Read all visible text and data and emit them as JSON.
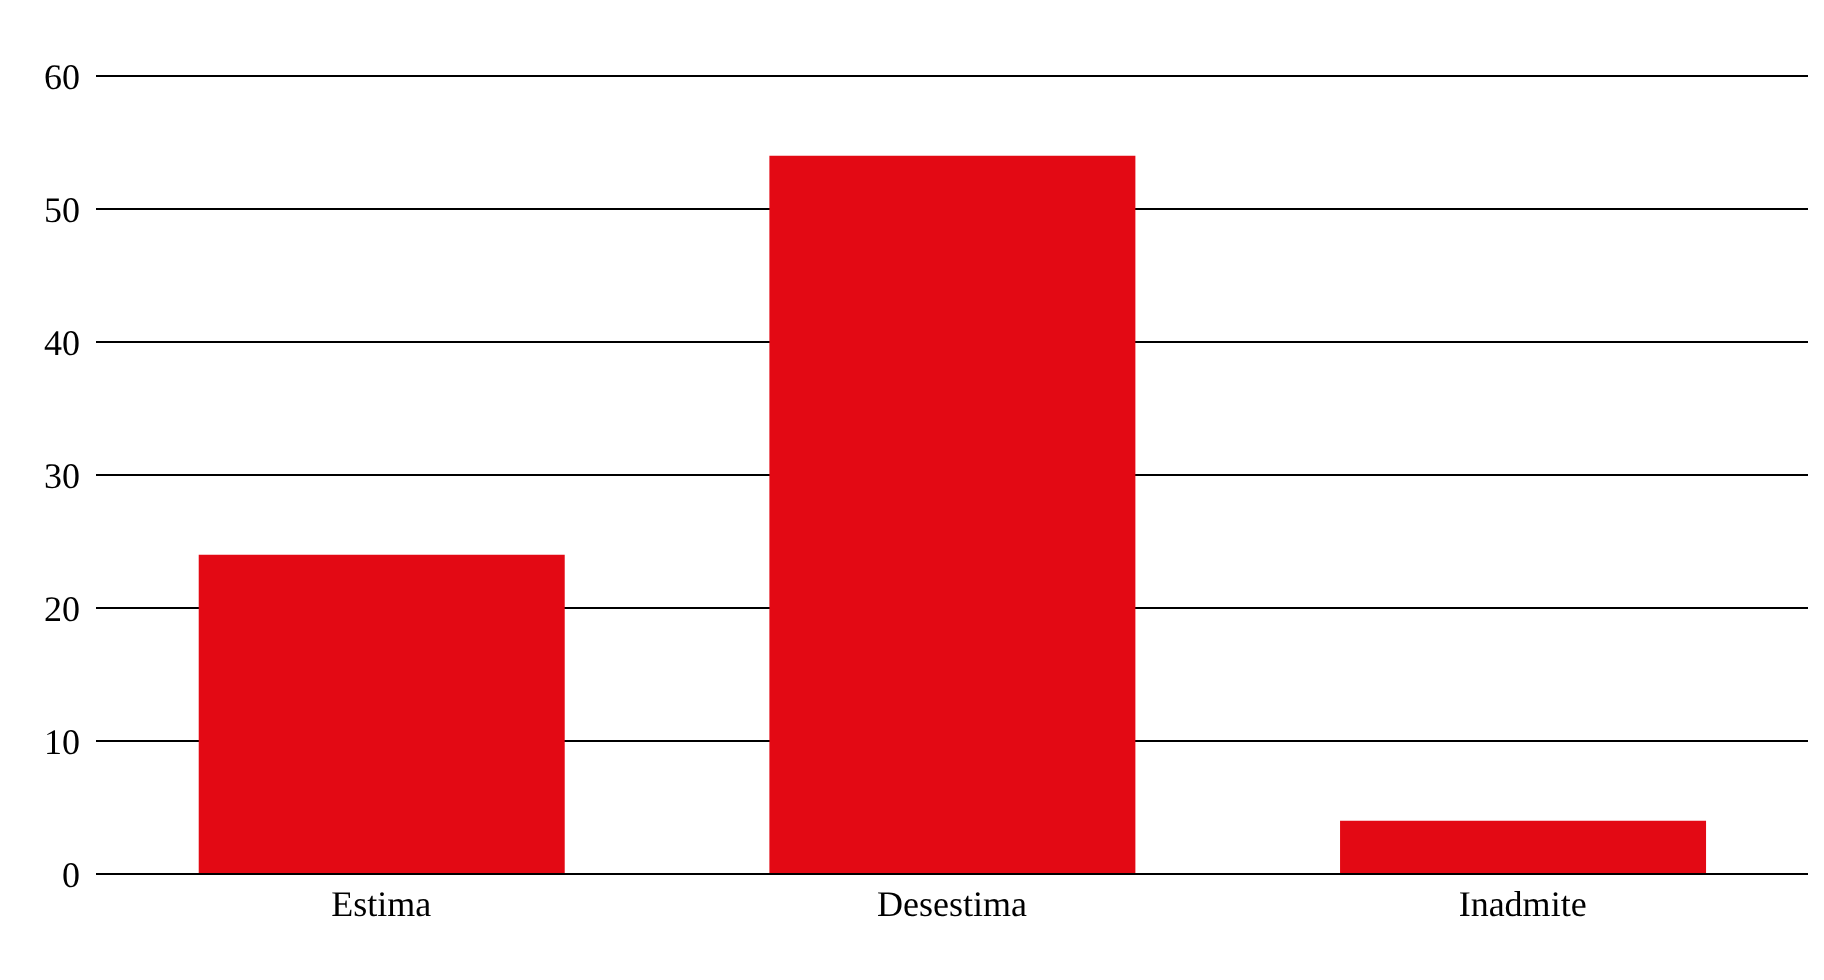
{
  "chart_data": {
    "type": "bar",
    "categories": [
      "Estima",
      "Desestima",
      "Inadmite"
    ],
    "values": [
      24,
      54,
      4
    ],
    "color": "#e30914",
    "ylim": [
      0,
      60
    ],
    "yticks": [
      0,
      10,
      20,
      30,
      40,
      50,
      60
    ],
    "grid": "y"
  }
}
